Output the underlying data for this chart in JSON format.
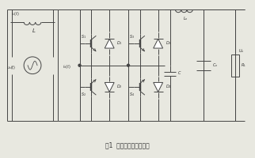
{
  "caption": "图1  单相全桥主电路结构",
  "bg_color": "#e8e8e0",
  "line_color": "#444444",
  "line_width": 0.7,
  "text_color": "#333333"
}
